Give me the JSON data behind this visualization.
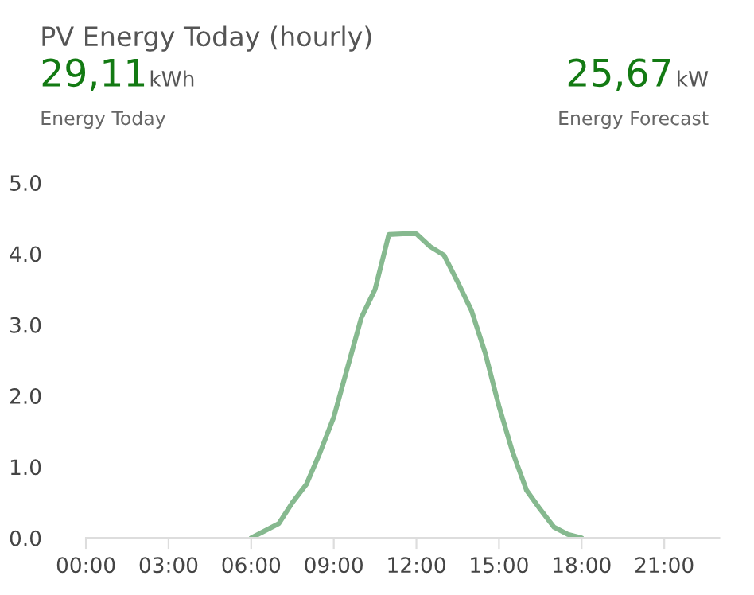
{
  "chart_data": {
    "type": "line",
    "title": "PV Energy Today (hourly)",
    "annotations": [
      "29,11",
      "kWh",
      "Energy Today",
      "25,67",
      "kW",
      "Energy Forecast"
    ],
    "series": [
      {
        "color": "#86b98f",
        "x": [
          6,
          6.5,
          7,
          7.5,
          8,
          8.5,
          9,
          9.5,
          10,
          10.5,
          11,
          11.5,
          12,
          12.5,
          13,
          13.5,
          14,
          14.5,
          15,
          15.5,
          16,
          16.5,
          17,
          17.5,
          18
        ],
        "values": [
          0,
          0.1,
          0.2,
          0.5,
          0.75,
          1.2,
          1.7,
          2.4,
          3.1,
          3.5,
          4.27,
          4.28,
          4.28,
          4.1,
          3.98,
          3.6,
          3.2,
          2.6,
          1.85,
          1.2,
          0.67,
          0.4,
          0.15,
          0.05,
          0
        ]
      }
    ],
    "xlim": [
      0,
      23
    ],
    "xticks": [
      {
        "value": 0,
        "label": "00:00"
      },
      {
        "value": 3,
        "label": "03:00"
      },
      {
        "value": 6,
        "label": "06:00"
      },
      {
        "value": 9,
        "label": "09:00"
      },
      {
        "value": 12,
        "label": "12:00"
      },
      {
        "value": 15,
        "label": "15:00"
      },
      {
        "value": 18,
        "label": "18:00"
      },
      {
        "value": 21,
        "label": "21:00"
      }
    ],
    "ylim": [
      0,
      5
    ],
    "yticks": [
      {
        "value": 0,
        "label": "0.0"
      },
      {
        "value": 1,
        "label": "1.0"
      },
      {
        "value": 2,
        "label": "2.0"
      },
      {
        "value": 3,
        "label": "3.0"
      },
      {
        "value": 4,
        "label": "4.0"
      },
      {
        "value": 5,
        "label": "5.0"
      }
    ],
    "grid": false,
    "legend": false,
    "marker": "none",
    "line_style": "solid"
  }
}
